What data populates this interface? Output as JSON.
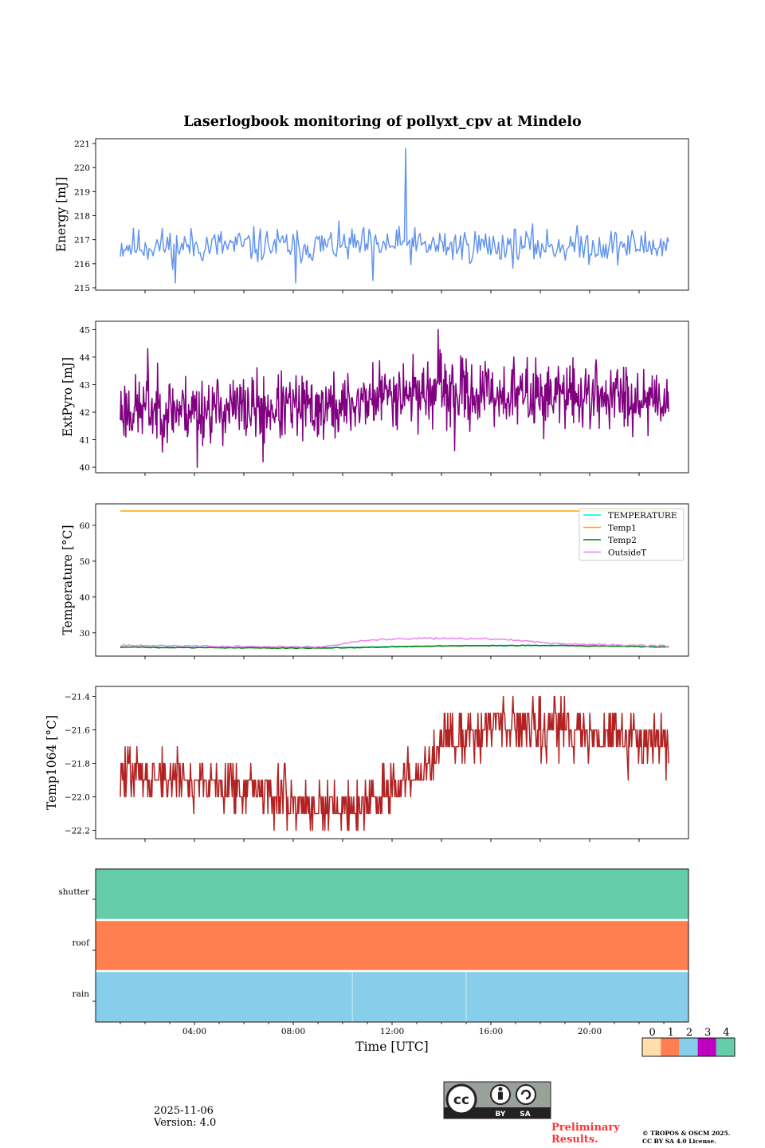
{
  "title": "Laserlogbook monitoring of pollyxt_cpv at Mindelo",
  "chart_data": [
    {
      "type": "line",
      "ylabel": "Energy [mJ]",
      "ylim": [
        214.9,
        221.2
      ],
      "yticks": [
        "215",
        "216",
        "217",
        "218",
        "219",
        "220",
        "221"
      ],
      "ytick_values": [
        215,
        216,
        217,
        218,
        219,
        220,
        221
      ],
      "series": [
        {
          "name": "Energy",
          "color": "#6495ed",
          "gen": {
            "base": 216.75,
            "amp": 0.45,
            "seed": 11,
            "n": 420,
            "trend": [
              [
                0,
                0
              ],
              [
                1,
                0
              ]
            ],
            "spikes": [
              [
                0.52,
                220.8
              ],
              [
                0.1,
                215.2
              ],
              [
                0.32,
                215.2
              ],
              [
                0.46,
                215.3
              ]
            ]
          }
        }
      ]
    },
    {
      "type": "line",
      "ylabel": "ExtPyro [mJ]",
      "ylim": [
        39.8,
        45.3
      ],
      "yticks": [
        "40",
        "41",
        "42",
        "43",
        "44",
        "45"
      ],
      "ytick_values": [
        40,
        41,
        42,
        43,
        44,
        45
      ],
      "series": [
        {
          "name": "ExtPyro",
          "color": "#800080",
          "gen": {
            "base": 42.1,
            "amp": 0.75,
            "seed": 23,
            "n": 900,
            "trend": [
              [
                0,
                0
              ],
              [
                0.4,
                0.05
              ],
              [
                0.5,
                0.65
              ],
              [
                0.7,
                0.55
              ],
              [
                1,
                0.45
              ]
            ],
            "spikes": [
              [
                0.05,
                44.3
              ],
              [
                0.14,
                40.0
              ],
              [
                0.26,
                40.2
              ],
              [
                0.58,
                45.0
              ],
              [
                0.61,
                40.6
              ]
            ]
          }
        }
      ]
    },
    {
      "type": "line",
      "ylabel": "Temperature [°C]",
      "ylim": [
        23.5,
        66
      ],
      "yticks": [
        "30",
        "40",
        "50",
        "60"
      ],
      "ytick_values": [
        30,
        40,
        50,
        60
      ],
      "legend": "top-right",
      "series": [
        {
          "name": "TEMPERATURE",
          "color": "#00e5ee",
          "gen": {
            "base": 26.0,
            "amp": 0.05,
            "seed": 31,
            "n": 200,
            "trend": [
              [
                0,
                0
              ],
              [
                0.35,
                -0.2
              ],
              [
                0.6,
                0.4
              ],
              [
                0.8,
                0.5
              ],
              [
                1,
                0.1
              ]
            ],
            "spikes": []
          }
        },
        {
          "name": "Temp1",
          "color": "#ffa500",
          "gen": {
            "base": 64.0,
            "amp": 0.0,
            "seed": 32,
            "n": 50,
            "trend": [
              [
                0,
                0
              ],
              [
                1,
                0
              ]
            ],
            "spikes": []
          }
        },
        {
          "name": "Temp2",
          "color": "#008000",
          "gen": {
            "base": 26.0,
            "amp": 0.08,
            "seed": 33,
            "n": 200,
            "trend": [
              [
                0,
                0
              ],
              [
                0.35,
                -0.3
              ],
              [
                0.6,
                0.35
              ],
              [
                0.8,
                0.45
              ],
              [
                1,
                0.05
              ]
            ],
            "spikes": []
          }
        },
        {
          "name": "OutsideT",
          "color": "#ee82ee",
          "gen": {
            "base": 26.3,
            "amp": 0.15,
            "seed": 34,
            "n": 300,
            "trend": [
              [
                0,
                0.2
              ],
              [
                0.3,
                -0.2
              ],
              [
                0.37,
                -0.2
              ],
              [
                0.45,
                1.7
              ],
              [
                0.55,
                2.2
              ],
              [
                0.7,
                2.0
              ],
              [
                0.8,
                0.6
              ],
              [
                1,
                0
              ]
            ],
            "spikes": []
          }
        }
      ]
    },
    {
      "type": "line",
      "ylabel": "Temp1064 [°C]",
      "ylim": [
        -22.25,
        -21.34
      ],
      "yticks": [
        "−22.2",
        "−22.0",
        "−21.8",
        "−21.6",
        "−21.4"
      ],
      "ytick_values": [
        -22.2,
        -22.0,
        -21.8,
        -21.6,
        -21.4
      ],
      "series": [
        {
          "name": "Temp1064",
          "color": "#b22222",
          "gen": {
            "base": 0,
            "amp": 0.1,
            "seed": 47,
            "n": 800,
            "step": 0.1,
            "trend": [
              [
                0,
                -21.85
              ],
              [
                0.12,
                -21.9
              ],
              [
                0.25,
                -21.95
              ],
              [
                0.35,
                -22.05
              ],
              [
                0.45,
                -22.05
              ],
              [
                0.55,
                -21.85
              ],
              [
                0.6,
                -21.65
              ],
              [
                0.7,
                -21.55
              ],
              [
                0.8,
                -21.58
              ],
              [
                0.9,
                -21.65
              ],
              [
                1,
                -21.68
              ]
            ],
            "spikes": []
          }
        }
      ]
    },
    {
      "type": "heatmap",
      "rows": [
        "shutter",
        "roof",
        "rain"
      ],
      "row_values": [
        4,
        1,
        2
      ],
      "row_boundaries": [
        [],
        [],
        [
          0.433,
          0.625
        ]
      ]
    }
  ],
  "x_axis": {
    "xlabel": "Time [UTC]",
    "xlim_hours": [
      0,
      24
    ],
    "ticks": [
      "04:00",
      "08:00",
      "12:00",
      "16:00",
      "20:00"
    ],
    "tick_hours": [
      4,
      8,
      12,
      16,
      20
    ],
    "data_start_hour": 1.0,
    "data_end_hour": 23.2
  },
  "status_colorbar": {
    "labels": [
      "0",
      "1",
      "2",
      "3",
      "4"
    ],
    "colors": [
      "#ffdead",
      "#ff7f50",
      "#87ceeb",
      "#c000c0",
      "#66cdaa"
    ]
  },
  "footer": {
    "date": "2025-11-06",
    "version": "Version: 4.0",
    "license_badge": [
      "BY",
      "SA"
    ],
    "preliminary": [
      "Preliminary",
      "Results."
    ],
    "copyright": [
      "© TROPOS & OSCM 2025.",
      "CC BY SA 4.0 License."
    ]
  }
}
